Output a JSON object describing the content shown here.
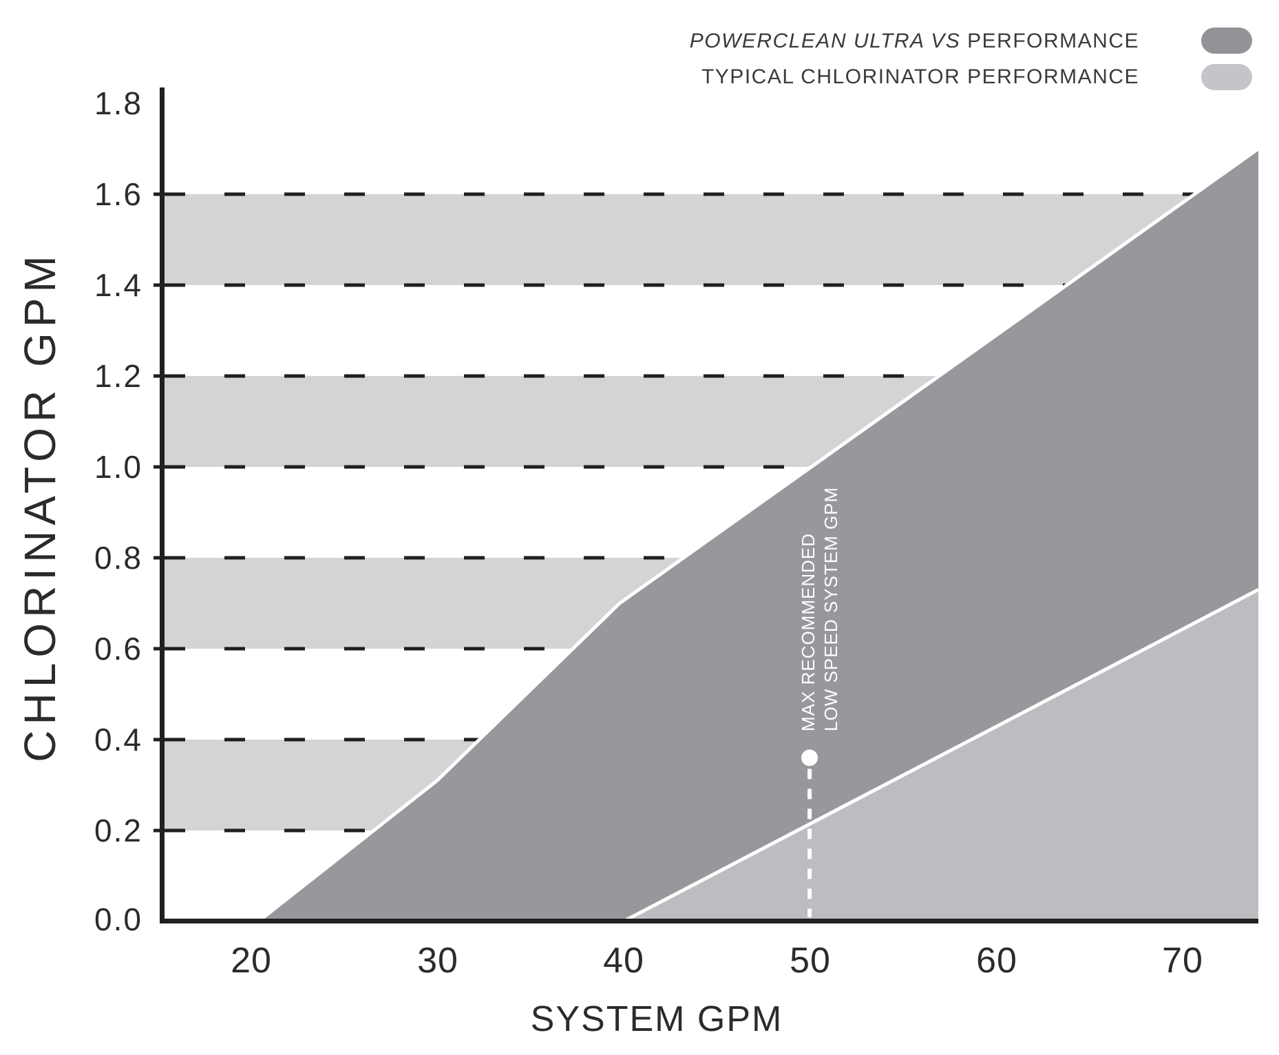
{
  "legend": {
    "series1_italic": "POWERCLEAN ULTRA VS",
    "series1_rest": " PERFORMANCE",
    "series2": "TYPICAL CHLORINATOR PERFORMANCE",
    "swatch1_color": "#929397",
    "swatch2_color": "#c4c5c8"
  },
  "axes": {
    "y_title": "CHLORINATOR GPM",
    "x_title": "SYSTEM GPM",
    "y_tick_labels": [
      "1.8",
      "1.6",
      "1.4",
      "1.2",
      "1.0",
      "0.8",
      "0.6",
      "0.4",
      "0.2",
      "0.0"
    ],
    "x_tick_labels": [
      "20",
      "30",
      "40",
      "50",
      "60",
      "70"
    ]
  },
  "annotation": {
    "line1": "MAX RECOMMENDED",
    "line2": "LOW SPEED SYSTEM GPM"
  },
  "chart_data": {
    "type": "area",
    "title": "",
    "xlabel": "SYSTEM GPM",
    "ylabel": "CHLORINATOR GPM",
    "xlim": [
      15.1,
      74.1
    ],
    "ylim": [
      0,
      1.8
    ],
    "x_ticks": [
      20,
      30,
      40,
      50,
      60,
      70
    ],
    "y_ticks": [
      0.2,
      0.4,
      0.6,
      0.8,
      1.0,
      1.2,
      1.4,
      1.6
    ],
    "background_bands": [
      [
        0.2,
        0.4
      ],
      [
        0.6,
        0.8
      ],
      [
        1.0,
        1.2
      ],
      [
        1.4,
        1.6
      ]
    ],
    "band_color": "#d3d4d6",
    "gridline_color": "#1f1e20",
    "axis_color": "#231f20",
    "grid": true,
    "legend_position": "top-right",
    "series": [
      {
        "name": "POWERCLEAN ULTRA VS PERFORMANCE",
        "color": "#97989b",
        "edge_color": "#ffffff",
        "boundary": [
          [
            20.4,
            0.0
          ],
          [
            30.0,
            0.31
          ],
          [
            39.8,
            0.7
          ],
          [
            74.1,
            1.7
          ]
        ]
      },
      {
        "name": "TYPICAL CHLORINATOR PERFORMANCE",
        "color": "#bcbdc0",
        "edge_color": "#ffffff",
        "boundary": [
          [
            40.0,
            0.0
          ],
          [
            74.1,
            0.73
          ]
        ]
      }
    ],
    "annotation_point": {
      "x": 50,
      "y": 0.36,
      "label": "MAX RECOMMENDED LOW SPEED SYSTEM GPM"
    }
  }
}
